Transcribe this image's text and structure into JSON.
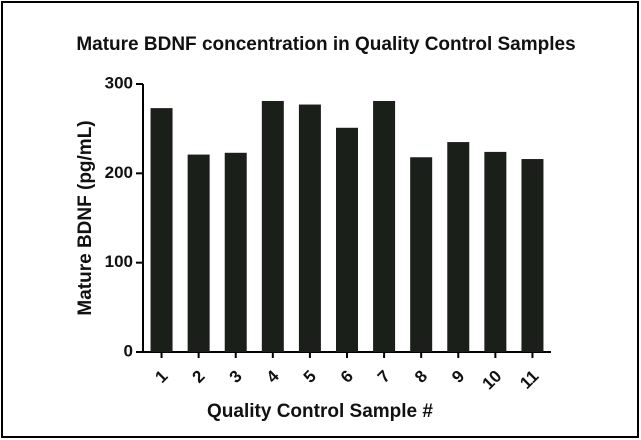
{
  "chart_data": {
    "type": "bar",
    "title": "Mature BDNF concentration in Quality Control Samples",
    "x_label": "Quality Control Sample #",
    "y_label": "Mature BDNF (pg/mL)",
    "categories": [
      "1",
      "2",
      "3",
      "4",
      "5",
      "6",
      "7",
      "8",
      "9",
      "10",
      "11"
    ],
    "values": [
      273,
      221,
      223,
      281,
      277,
      251,
      281,
      218,
      235,
      224,
      216
    ],
    "color": "#1b1f1a",
    "ylim": [
      0,
      300
    ],
    "yticks": [
      0,
      100,
      200,
      300
    ],
    "grid": false
  }
}
